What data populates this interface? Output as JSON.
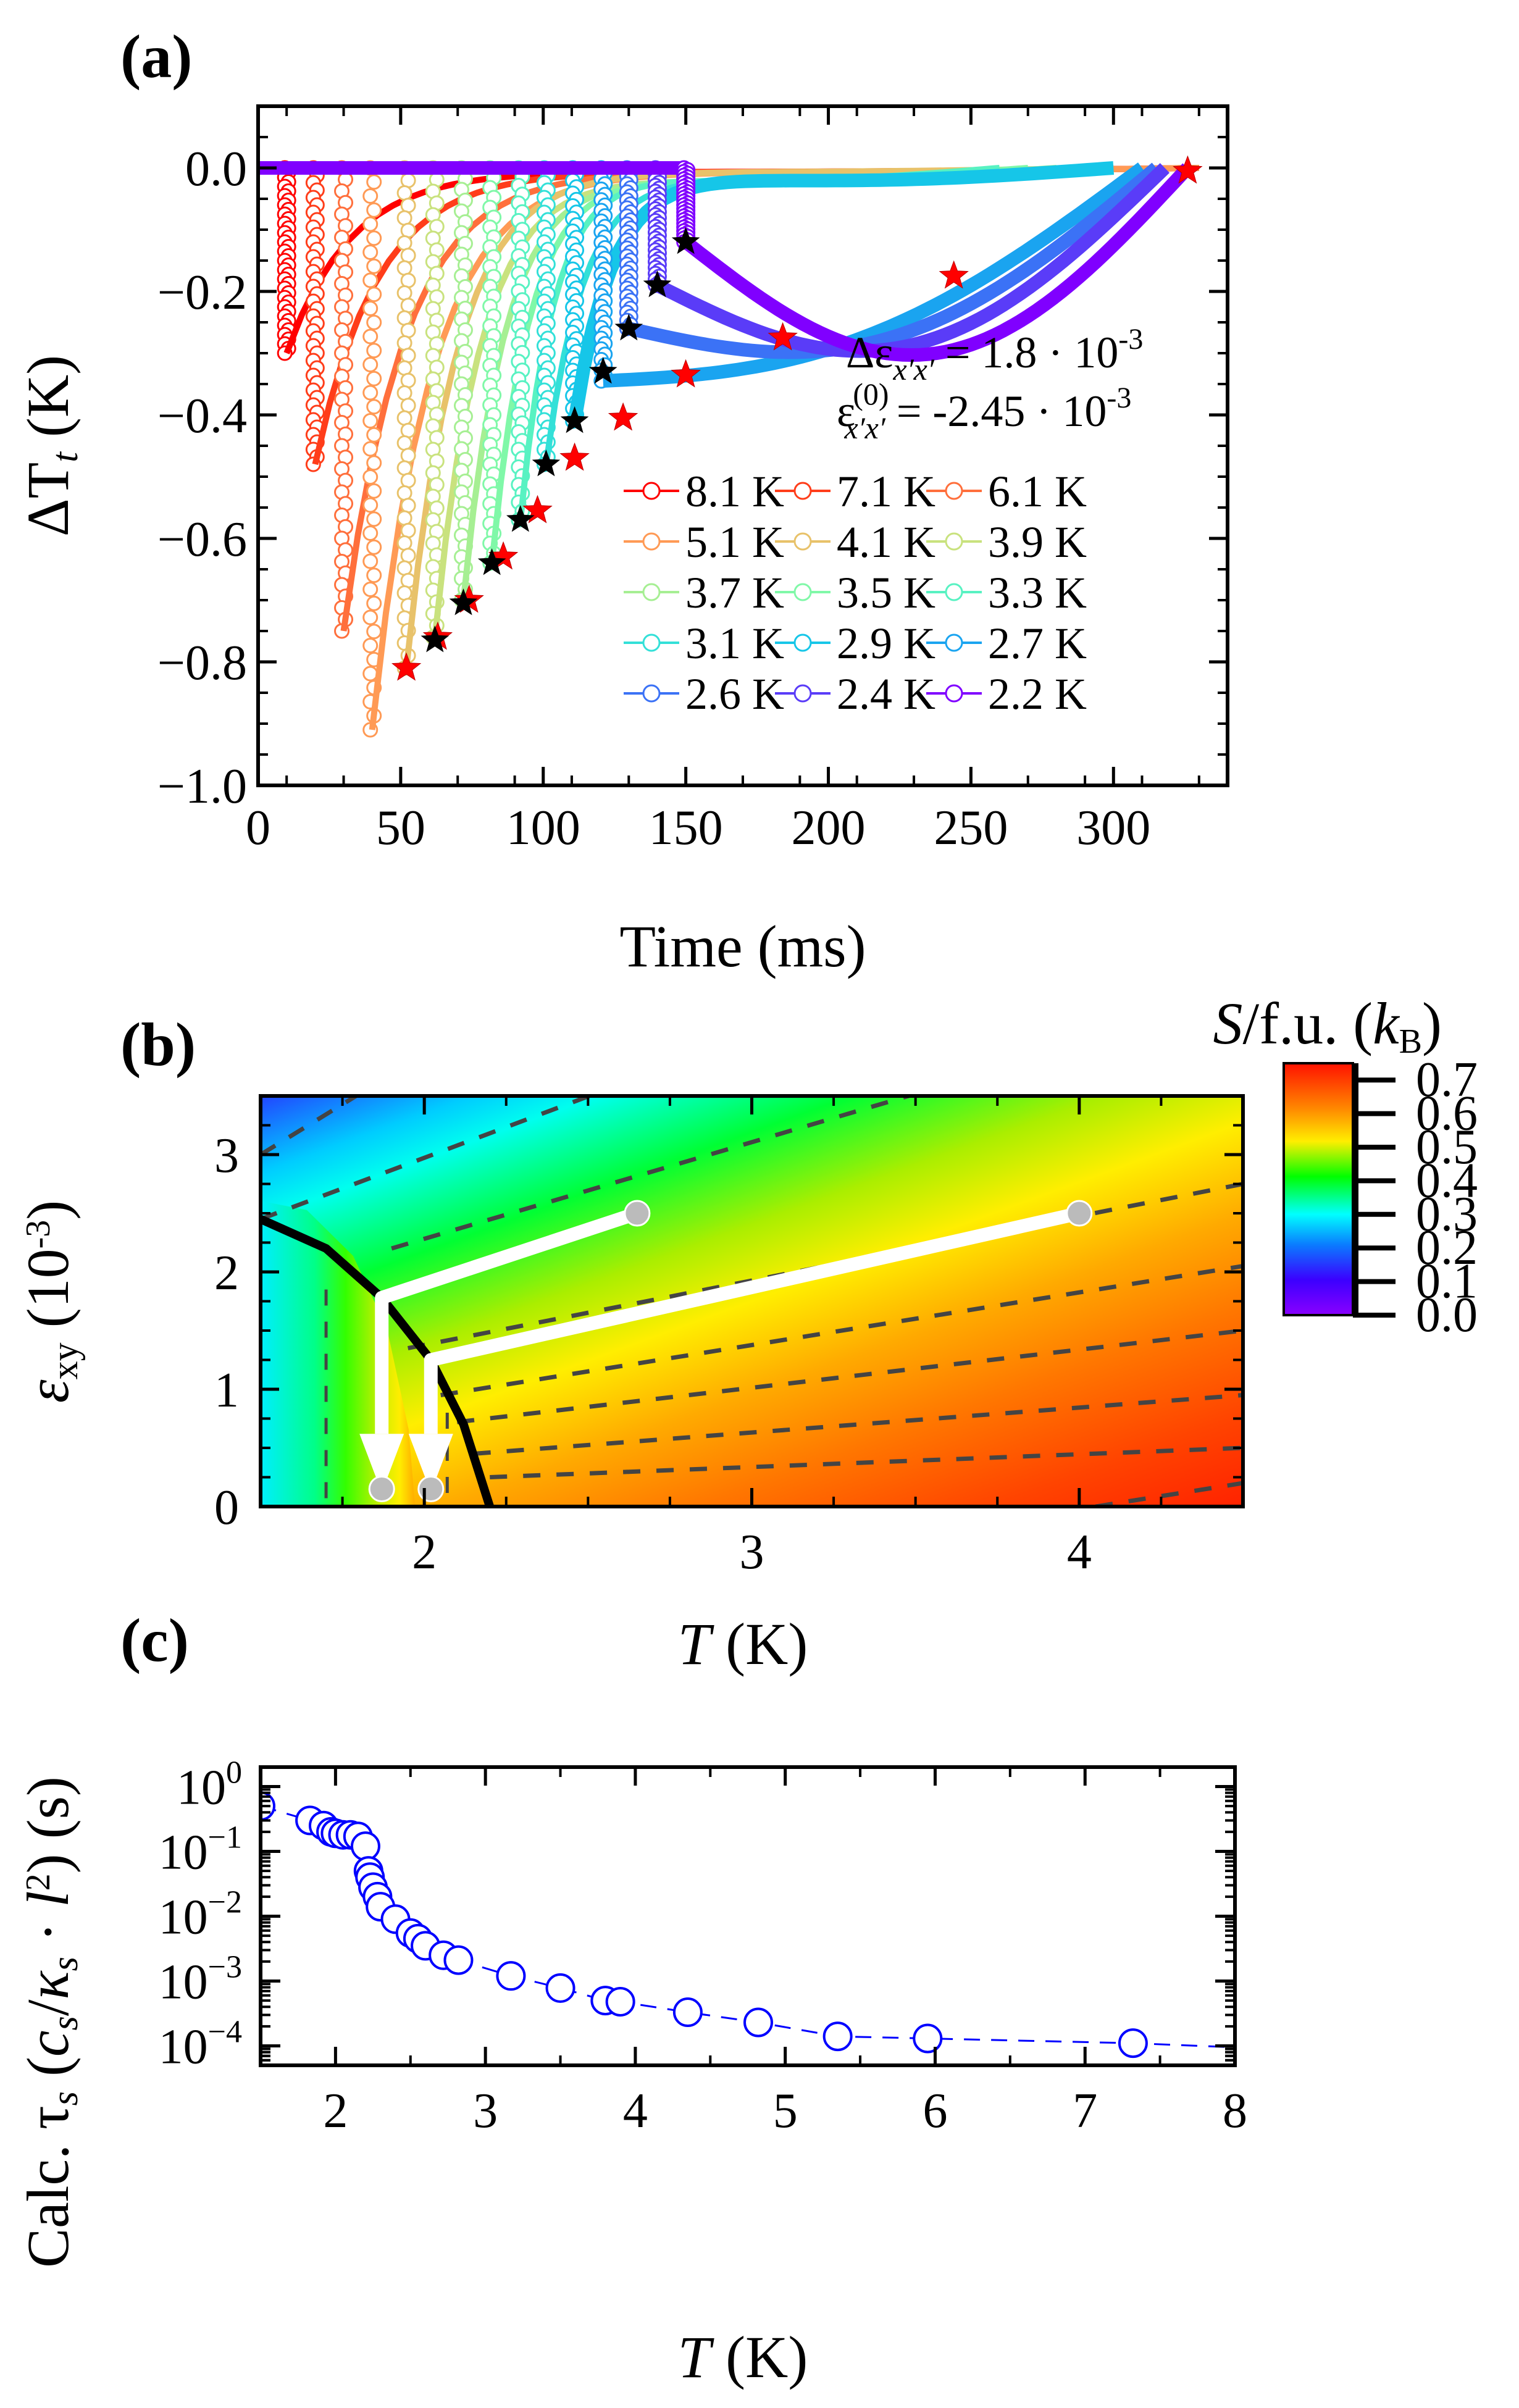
{
  "chart_data": [
    {
      "panel": "(a)",
      "type": "scatter",
      "title": "",
      "xlabel": "Time (ms)",
      "ylabel": "ΔT_t (K)",
      "xlim": [
        0,
        340
      ],
      "ylim": [
        -1.0,
        0.1
      ],
      "xticks": [
        "0",
        "50",
        "100",
        "150",
        "200",
        "250",
        "300"
      ],
      "xtick_values": [
        0,
        50,
        100,
        150,
        200,
        250,
        300
      ],
      "yticks": [
        "0.0",
        "−0.2",
        "−0.4",
        "−0.6",
        "−0.8",
        "−1.0"
      ],
      "ytick_values": [
        0.0,
        -0.2,
        -0.4,
        -0.6,
        -0.8,
        -1.0
      ],
      "annotations": [
        {
          "text": "Δε",
          "sub": "x′x′",
          "rest": " = 1.8 · 10",
          "sup": "-3"
        },
        {
          "text": "ε",
          "sub": "x′x′",
          "supPre": "(0)",
          "rest": " = -2.45 · 10",
          "sup": "-3"
        }
      ],
      "legend_position": "lower-right",
      "series": [
        {
          "name": "8.1 K",
          "color": "#ff0000",
          "t_min": 10,
          "dT_min": -0.3,
          "t_end": 330
        },
        {
          "name": "7.1 K",
          "color": "#ff3d1a",
          "t_min": 20,
          "dT_min": -0.48,
          "t_end": 330
        },
        {
          "name": "6.1 K",
          "color": "#ff6f3c",
          "t_min": 30,
          "dT_min": -0.75,
          "t_end": 330
        },
        {
          "name": "5.1 K",
          "color": "#ff9a55",
          "t_min": 40,
          "dT_min": -0.91,
          "t_end": 330
        },
        {
          "name": "4.1 K",
          "color": "#e8c26a",
          "t_min": 52,
          "dT_min": -0.81,
          "t_end": 300
        },
        {
          "name": "3.9 K",
          "color": "#c9e27e",
          "t_min": 62,
          "dT_min": -0.76,
          "t_end": 290
        },
        {
          "name": "3.7 K",
          "color": "#a6ef93",
          "t_min": 72,
          "dT_min": -0.7,
          "t_end": 280
        },
        {
          "name": "3.5 K",
          "color": "#80f8a8",
          "t_min": 82,
          "dT_min": -0.64,
          "t_end": 270
        },
        {
          "name": "3.3 K",
          "color": "#58f2c2",
          "t_min": 92,
          "dT_min": -0.57,
          "t_end": 260
        },
        {
          "name": "3.1 K",
          "color": "#33e0d8",
          "t_min": 101,
          "dT_min": -0.48,
          "t_end": 290
        },
        {
          "name": "2.9 K",
          "color": "#16c6e8",
          "t_min": 111,
          "dT_min": -0.41,
          "t_end": 300
        },
        {
          "name": "2.7 K",
          "color": "#1aa4f0",
          "t_min": 121,
          "dT_min": -0.345,
          "t_end": 310
        },
        {
          "name": "2.6 K",
          "color": "#3b72f6",
          "t_min": 130,
          "dT_min": -0.26,
          "t_end": 315
        },
        {
          "name": "2.4 K",
          "color": "#5a3cf8",
          "t_min": 140,
          "dT_min": -0.19,
          "t_end": 318
        },
        {
          "name": "2.2 K",
          "color": "#8000ff",
          "t_min": 150,
          "dT_min": -0.12,
          "t_end": 326
        }
      ],
      "red_stars": [
        [
          52,
          -0.81
        ],
        [
          63,
          -0.76
        ],
        [
          74,
          -0.7
        ],
        [
          86,
          -0.63
        ],
        [
          98,
          -0.555
        ],
        [
          111,
          -0.47
        ],
        [
          128,
          -0.405
        ],
        [
          150,
          -0.335
        ],
        [
          184,
          -0.275
        ],
        [
          244,
          -0.175
        ],
        [
          326,
          -0.005
        ]
      ],
      "black_stars": [
        [
          62,
          -0.765
        ],
        [
          72,
          -0.705
        ],
        [
          82,
          -0.64
        ],
        [
          92,
          -0.57
        ],
        [
          101,
          -0.48
        ],
        [
          111,
          -0.41
        ],
        [
          121,
          -0.33
        ],
        [
          130,
          -0.26
        ],
        [
          140,
          -0.19
        ],
        [
          150,
          -0.12
        ]
      ]
    },
    {
      "panel": "(b)",
      "type": "heatmap",
      "xlabel": "T (K)",
      "ylabel": "ε_xy (10^-3)",
      "xlim": [
        1.5,
        4.5
      ],
      "ylim": [
        0,
        3.5
      ],
      "xticks": [
        "2",
        "3",
        "4"
      ],
      "xtick_values": [
        2,
        3,
        4
      ],
      "yticks": [
        "0",
        "1",
        "2",
        "3"
      ],
      "ytick_values": [
        0,
        1,
        2,
        3
      ],
      "colorbar": {
        "label": "S/f.u. (k_B)",
        "range": [
          0.0,
          0.75
        ],
        "ticks": [
          "0.0",
          "0.1",
          "0.2",
          "0.3",
          "0.4",
          "0.5",
          "0.6",
          "0.7"
        ],
        "tick_values": [
          0.0,
          0.1,
          0.2,
          0.3,
          0.4,
          0.5,
          0.6,
          0.7
        ],
        "colormap": "rainbow (violet → blue → cyan → green → yellow → orange → red)"
      },
      "phase_boundary": [
        [
          1.5,
          2.45
        ],
        [
          1.7,
          2.2
        ],
        [
          1.87,
          1.78
        ],
        [
          2.02,
          1.25
        ],
        [
          2.12,
          0.7
        ],
        [
          2.2,
          0.0
        ]
      ],
      "paths": [
        {
          "from": [
            2.65,
            2.5
          ],
          "corner": [
            1.87,
            1.78
          ],
          "to": [
            1.87,
            0.15
          ]
        },
        {
          "from": [
            4.0,
            2.5
          ],
          "corner": [
            2.02,
            1.25
          ],
          "to": [
            2.02,
            0.15
          ]
        }
      ],
      "endpoint_markers": [
        [
          2.65,
          2.5
        ],
        [
          4.0,
          2.5
        ],
        [
          1.87,
          0.15
        ],
        [
          2.02,
          0.15
        ]
      ]
    },
    {
      "panel": "(c)",
      "type": "line",
      "xlabel": "T (K)",
      "ylabel": "Calc. τ_s (c_s/κ_s · l²) (s)",
      "xlim": [
        1.5,
        8
      ],
      "ylim_log10": [
        -4.3,
        0.3
      ],
      "xticks": [
        "2",
        "3",
        "4",
        "5",
        "6",
        "7",
        "8"
      ],
      "xtick_values": [
        2,
        3,
        4,
        5,
        6,
        7,
        8
      ],
      "yticks": [
        "10^0",
        "10^-1",
        "10^-2",
        "10^-3",
        "10^-4"
      ],
      "ytick_exponents": [
        0,
        -1,
        -2,
        -3,
        -4
      ],
      "color": "#0000ff",
      "x": [
        1.5,
        1.83,
        1.92,
        1.97,
        2.0,
        2.05,
        2.1,
        2.15,
        2.2,
        2.22,
        2.23,
        2.25,
        2.28,
        2.3,
        2.4,
        2.5,
        2.55,
        2.6,
        2.72,
        2.82,
        3.17,
        3.5,
        3.8,
        3.9,
        4.35,
        4.82,
        5.35,
        5.95,
        7.32
      ],
      "y": [
        0.5,
        0.3,
        0.25,
        0.2,
        0.19,
        0.18,
        0.18,
        0.17,
        0.12,
        0.05,
        0.04,
        0.028,
        0.02,
        0.014,
        0.009,
        0.0055,
        0.0045,
        0.0035,
        0.0025,
        0.0021,
        0.0012,
        0.00078,
        0.0005,
        0.00048,
        0.00033,
        0.00023,
        0.00014,
        0.00013,
        0.00011
      ],
      "line_end": [
        8.0,
        9.5e-05
      ]
    }
  ]
}
